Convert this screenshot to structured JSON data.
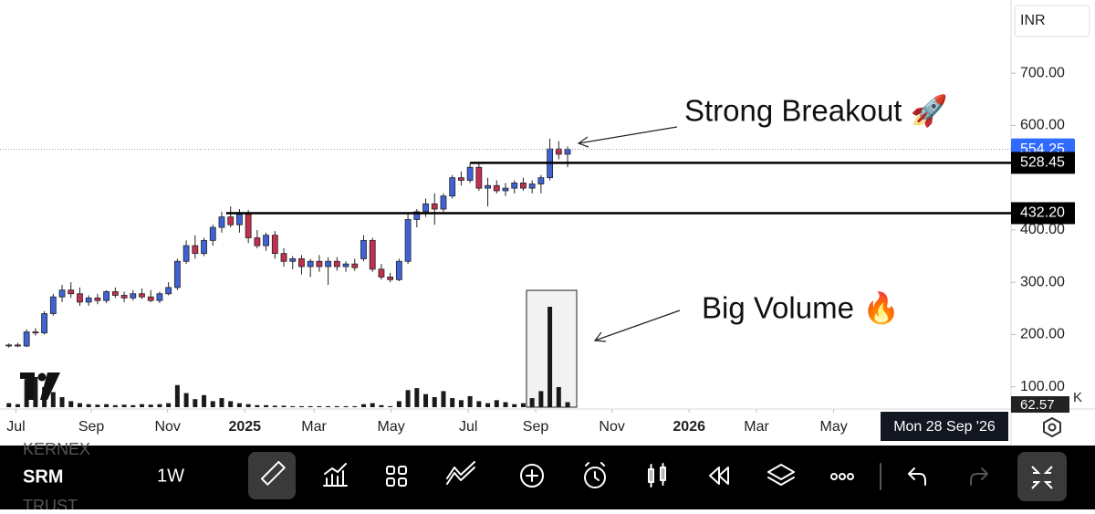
{
  "chart_data": {
    "type": "candlestick",
    "currency": "INR",
    "open": [
      178,
      180,
      178,
      205,
      203,
      240,
      272,
      285,
      278,
      262,
      270,
      265,
      282,
      275,
      270,
      278,
      272,
      265,
      278,
      290,
      340,
      370,
      355,
      380,
      405,
      425,
      410,
      430,
      385,
      370,
      390,
      355,
      340,
      345,
      330,
      340,
      330,
      340,
      330,
      335,
      345,
      380,
      325,
      310,
      305,
      340,
      420,
      435,
      450,
      440,
      465,
      500,
      495,
      520,
      480,
      485,
      475,
      480,
      490,
      480,
      488,
      500,
      555,
      545
    ],
    "high": [
      183,
      184,
      210,
      212,
      245,
      278,
      295,
      300,
      290,
      275,
      278,
      285,
      290,
      282,
      285,
      288,
      285,
      282,
      300,
      345,
      380,
      390,
      385,
      410,
      435,
      445,
      440,
      438,
      400,
      395,
      398,
      365,
      350,
      352,
      345,
      352,
      348,
      348,
      340,
      345,
      390,
      385,
      335,
      318,
      345,
      430,
      440,
      460,
      470,
      470,
      505,
      512,
      528,
      530,
      500,
      495,
      490,
      495,
      500,
      495,
      505,
      575,
      570,
      560
    ],
    "low": [
      175,
      176,
      176,
      198,
      200,
      236,
      262,
      270,
      255,
      255,
      258,
      260,
      270,
      262,
      265,
      268,
      262,
      260,
      275,
      285,
      335,
      345,
      350,
      370,
      395,
      405,
      395,
      375,
      365,
      360,
      345,
      330,
      325,
      315,
      310,
      320,
      295,
      322,
      320,
      322,
      340,
      320,
      305,
      300,
      302,
      335,
      405,
      425,
      410,
      435,
      460,
      485,
      490,
      475,
      445,
      470,
      465,
      470,
      475,
      470,
      470,
      495,
      535,
      520
    ],
    "close": [
      180,
      178,
      205,
      203,
      240,
      272,
      285,
      278,
      262,
      270,
      265,
      282,
      275,
      270,
      278,
      272,
      265,
      278,
      290,
      340,
      370,
      355,
      380,
      405,
      425,
      410,
      430,
      385,
      370,
      390,
      355,
      340,
      345,
      330,
      340,
      330,
      340,
      330,
      335,
      328,
      380,
      325,
      310,
      305,
      340,
      420,
      435,
      450,
      440,
      465,
      500,
      495,
      520,
      480,
      485,
      475,
      480,
      490,
      480,
      488,
      500,
      555,
      545,
      554.25
    ],
    "volume": [
      40,
      30,
      280,
      300,
      200,
      150,
      100,
      60,
      40,
      30,
      25,
      30,
      20,
      25,
      20,
      30,
      25,
      30,
      40,
      220,
      140,
      80,
      120,
      60,
      90,
      60,
      40,
      30,
      20,
      20,
      15,
      15,
      10,
      10,
      10,
      10,
      10,
      10,
      10,
      10,
      30,
      40,
      20,
      10,
      60,
      170,
      190,
      130,
      100,
      160,
      90,
      70,
      110,
      60,
      40,
      70,
      50,
      30,
      40,
      90,
      160,
      1000,
      200,
      50
    ],
    "up_color": "#3f63d6",
    "down_color": "#c2304f",
    "volume_color": "#1a1a1a",
    "xlim": [
      -1,
      113
    ],
    "xticks": [
      {
        "value": 0.8,
        "label": "Jul"
      },
      {
        "value": 9.3,
        "label": "Sep"
      },
      {
        "value": 17.9,
        "label": "Nov"
      },
      {
        "value": 26.6,
        "label": "2025"
      },
      {
        "value": 34.4,
        "label": "Mar"
      },
      {
        "value": 43.1,
        "label": "May"
      },
      {
        "value": 51.8,
        "label": "Jul"
      },
      {
        "value": 59.4,
        "label": "Sep"
      },
      {
        "value": 68,
        "label": "Nov"
      },
      {
        "value": 76.7,
        "label": "2026"
      },
      {
        "value": 84.3,
        "label": "Mar"
      },
      {
        "value": 93,
        "label": "May"
      }
    ],
    "ylim": [
      61,
      840
    ],
    "yticks": [
      {
        "value": 100,
        "label": "100.00"
      },
      {
        "value": 200,
        "label": "200.00"
      },
      {
        "value": 300,
        "label": "300.00"
      },
      {
        "value": 400,
        "label": "400.00"
      },
      {
        "value": 600,
        "label": "600.00"
      },
      {
        "value": 700,
        "label": "700.00"
      }
    ],
    "last_price": 554.25,
    "levels": [
      528.45,
      {
        "value": 432.2,
        "label": "432.20"
      }
    ],
    "volume_label": "62.57",
    "volume_unit": "K",
    "crosshair_date": "Mon 28 Sep '26",
    "annotations": [
      "Strong Breakout 🚀",
      "Big Volume 🔥"
    ]
  },
  "toolbar": {
    "symbol_above": "KERNEX",
    "symbol": "SRM",
    "symbol_below": "TRUST",
    "interval": "1W"
  }
}
